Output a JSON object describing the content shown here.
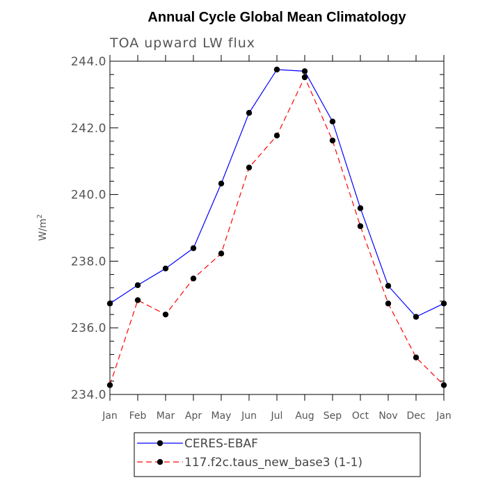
{
  "chart_data": {
    "type": "line",
    "title": "Annual Cycle Global Mean Climatology",
    "subtitle": "TOA upward LW flux",
    "ylabel": "W/m",
    "ylabel_sup": "2",
    "categories": [
      "Jan",
      "Feb",
      "Mar",
      "Apr",
      "May",
      "Jun",
      "Jul",
      "Aug",
      "Sep",
      "Oct",
      "Nov",
      "Dec",
      "Jan"
    ],
    "ylim": [
      234.0,
      244.0
    ],
    "yticks": [
      234.0,
      236.0,
      238.0,
      240.0,
      242.0,
      244.0
    ],
    "ytick_labels": [
      "234.0",
      "236.0",
      "238.0",
      "240.0",
      "242.0",
      "244.0"
    ],
    "series": [
      {
        "name": "CERES-EBAF",
        "color": "#0000ff",
        "dash": "solid",
        "values": [
          236.73,
          237.28,
          237.78,
          238.39,
          240.33,
          242.45,
          243.75,
          243.7,
          242.19,
          239.59,
          237.26,
          236.33,
          236.73
        ]
      },
      {
        "name": "117.f2c.taus_new_base3 (1-1)",
        "color": "#ff0000",
        "dash": "dashed",
        "values": [
          234.28,
          236.83,
          236.4,
          237.48,
          238.23,
          240.81,
          241.77,
          243.52,
          241.62,
          239.05,
          236.73,
          235.11,
          234.28
        ]
      }
    ],
    "legend_position": "bottom-center"
  }
}
